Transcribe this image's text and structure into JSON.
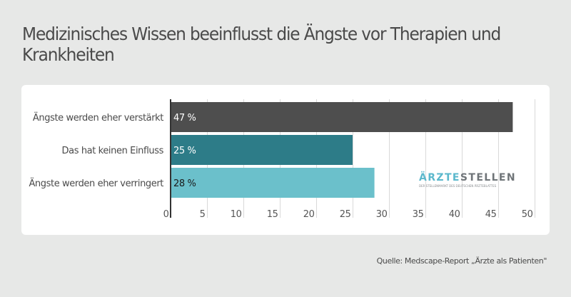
{
  "header": {
    "title": "Medizinisches Wissen beeinflusst die Ängste vor Therapien und Krankheiten"
  },
  "chart_data": {
    "type": "bar",
    "orientation": "horizontal",
    "title": "Medizinisches Wissen beeinflusst die Ängste vor Therapien und Krankheiten",
    "categories": [
      "Ängste werden eher verstärkt",
      "Das hat keinen Einfluss",
      "Ängste werden eher verringert"
    ],
    "values": [
      47,
      25,
      28
    ],
    "value_labels": [
      "47 %",
      "25 %",
      "28 %"
    ],
    "colors": [
      "#4e4e4e",
      "#2d7c88",
      "#6bc0cb"
    ],
    "value_label_colors": [
      "#ffffff",
      "#ffffff",
      "#1a1a1a"
    ],
    "xlabel": "",
    "ylabel": "",
    "xlim": [
      0,
      50
    ],
    "xticks": [
      0,
      5,
      10,
      15,
      20,
      25,
      30,
      35,
      40,
      45,
      50
    ],
    "xtick_labels": [
      "0",
      "5",
      "10",
      "15",
      "20",
      "25",
      "30",
      "35",
      "40",
      "45",
      "50"
    ],
    "grid": true,
    "legend": "none"
  },
  "logo": {
    "part1": "ÄRZTE",
    "part2": "STELLEN",
    "tagline": "DER STELLENMARKT DES DEUTSCHEN ÄRZTEBLATTES"
  },
  "footer": {
    "source": "Quelle: Medscape-Report „Ärzte als Patienten\""
  }
}
